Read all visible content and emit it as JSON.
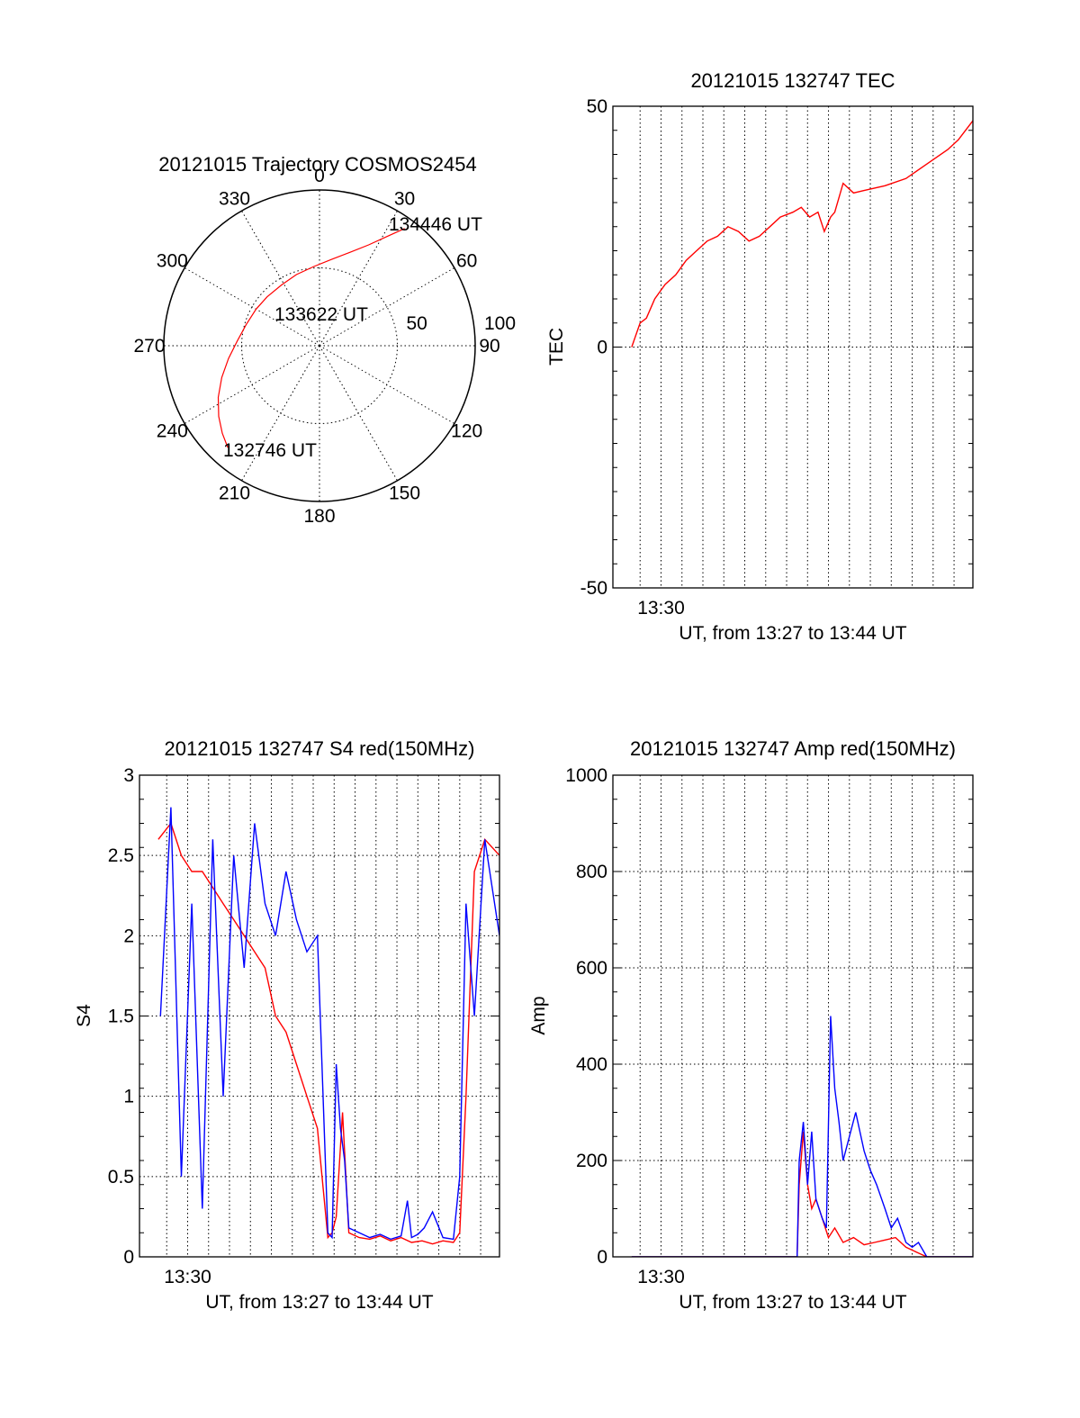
{
  "colors": {
    "red": "#ff0000",
    "blue": "#0000ff",
    "axis": "#000000",
    "background": "#ffffff"
  },
  "chart_data": [
    {
      "id": "trajectory",
      "type": "polar",
      "title": "20121015 Trajectory COSMOS2454",
      "azimuth_labels": [
        "0",
        "30",
        "60",
        "90",
        "120",
        "150",
        "180",
        "210",
        "240",
        "270",
        "300",
        "330"
      ],
      "radial_labels": [
        "50",
        "100"
      ],
      "rlim": [
        0,
        100
      ],
      "grid": true,
      "series": [
        {
          "color": "#ff0000",
          "points": [
            {
              "az": 222,
              "r": 88
            },
            {
              "az": 228,
              "r": 84
            },
            {
              "az": 235,
              "r": 79
            },
            {
              "az": 243,
              "r": 73
            },
            {
              "az": 252,
              "r": 66
            },
            {
              "az": 262,
              "r": 59
            },
            {
              "az": 273,
              "r": 53
            },
            {
              "az": 286,
              "r": 49
            },
            {
              "az": 300,
              "r": 47
            },
            {
              "az": 313,
              "r": 46
            },
            {
              "az": 328,
              "r": 46
            },
            {
              "az": 342,
              "r": 48
            },
            {
              "az": 356,
              "r": 51
            },
            {
              "az": 8,
              "r": 56
            },
            {
              "az": 18,
              "r": 63
            },
            {
              "az": 26,
              "r": 72
            },
            {
              "az": 32,
              "r": 83
            },
            {
              "az": 36,
              "r": 93
            }
          ]
        }
      ],
      "annotations": [
        "132746 UT",
        "133622 UT",
        "134446 UT"
      ]
    },
    {
      "id": "tec",
      "type": "line",
      "title": "20121015 132747 TEC",
      "xlabel": "UT, from 13:27 to 13:44 UT",
      "ylabel": "TEC",
      "xlim": [
        0,
        17.2
      ],
      "ylim": [
        -50,
        50
      ],
      "ytick_values": [
        50,
        0,
        -50
      ],
      "ytick_labels": [
        "50",
        "0",
        "-50"
      ],
      "xtick_labels": [
        {
          "x": 2.3,
          "label": "13:30"
        }
      ],
      "grid": true,
      "series": [
        {
          "color": "#ff0000",
          "x": [
            0.9,
            1.3,
            1.6,
            2.0,
            2.5,
            3.0,
            3.5,
            4.0,
            4.5,
            5.0,
            5.5,
            6.0,
            6.5,
            7.0,
            7.5,
            8.0,
            8.6,
            9.0,
            9.4,
            9.8,
            10.1,
            10.4,
            10.6,
            11.0,
            11.5,
            12.0,
            13.0,
            14.0,
            15.0,
            16.0,
            16.5,
            17.2
          ],
          "y": [
            0,
            5,
            6,
            10,
            13,
            15,
            18,
            20,
            22,
            23,
            25,
            24,
            22,
            23,
            25,
            27,
            28,
            29,
            27,
            28,
            24,
            27,
            28,
            34,
            32,
            32.5,
            33.5,
            35,
            38,
            41,
            43,
            47
          ]
        }
      ]
    },
    {
      "id": "s4",
      "type": "line",
      "title": "20121015 132747 S4 red(150MHz)",
      "xlabel": "UT, from 13:27 to 13:44 UT",
      "ylabel": "S4",
      "xlim": [
        0,
        17.2
      ],
      "ylim": [
        0,
        3
      ],
      "ytick_values": [
        0,
        0.5,
        1,
        1.5,
        2,
        2.5,
        3
      ],
      "ytick_labels": [
        "0",
        "0.5",
        "1",
        "1.5",
        "2",
        "2.5",
        "3"
      ],
      "xtick_labels": [
        {
          "x": 2.3,
          "label": "13:30"
        }
      ],
      "grid": true,
      "series": [
        {
          "color": "#ff0000",
          "x": [
            0.9,
            1.5,
            2.0,
            2.5,
            3.0,
            3.5,
            4.0,
            4.5,
            5.0,
            5.5,
            6.0,
            6.5,
            7.0,
            7.5,
            8.0,
            8.5,
            9.0,
            9.2,
            9.4,
            9.7,
            10.0,
            10.5,
            11.0,
            11.5,
            12.0,
            12.5,
            13.0,
            13.5,
            14.0,
            14.5,
            15.0,
            15.3,
            15.6,
            16.0,
            16.5,
            17.2
          ],
          "y": [
            2.6,
            2.7,
            2.5,
            2.4,
            2.4,
            2.3,
            2.2,
            2.1,
            2.0,
            1.9,
            1.8,
            1.5,
            1.4,
            1.2,
            1.0,
            0.8,
            0.12,
            0.15,
            0.25,
            0.9,
            0.15,
            0.12,
            0.11,
            0.13,
            0.1,
            0.12,
            0.09,
            0.1,
            0.08,
            0.1,
            0.09,
            0.15,
            1.0,
            2.4,
            2.6,
            2.5
          ]
        },
        {
          "color": "#0000ff",
          "x": [
            1.0,
            1.5,
            2.0,
            2.5,
            3.0,
            3.5,
            4.0,
            4.5,
            5.0,
            5.5,
            6.0,
            6.5,
            7.0,
            7.5,
            8.0,
            8.5,
            9.0,
            9.2,
            9.4,
            9.6,
            9.8,
            10.0,
            10.5,
            11.0,
            11.5,
            12.0,
            12.5,
            12.8,
            13.0,
            13.3,
            13.6,
            14.0,
            14.5,
            15.0,
            15.3,
            15.6,
            16.0,
            16.5,
            17.2
          ],
          "y": [
            1.5,
            2.8,
            0.5,
            2.2,
            0.3,
            2.6,
            1.0,
            2.5,
            1.8,
            2.7,
            2.2,
            2.0,
            2.4,
            2.1,
            1.9,
            2.0,
            0.15,
            0.12,
            1.2,
            0.8,
            0.6,
            0.18,
            0.15,
            0.12,
            0.14,
            0.11,
            0.13,
            0.35,
            0.12,
            0.14,
            0.18,
            0.28,
            0.12,
            0.11,
            0.5,
            2.2,
            1.5,
            2.6,
            2.0
          ]
        }
      ]
    },
    {
      "id": "amp",
      "type": "line",
      "title": "20121015 132747 Amp red(150MHz)",
      "xlabel": "UT, from 13:27 to 13:44 UT",
      "ylabel": "Amp",
      "xlim": [
        0,
        17.2
      ],
      "ylim": [
        0,
        1000
      ],
      "ytick_values": [
        0,
        200,
        400,
        600,
        800,
        1000
      ],
      "ytick_labels": [
        "0",
        "200",
        "400",
        "600",
        "800",
        "1000"
      ],
      "xtick_labels": [
        {
          "x": 2.3,
          "label": "13:30"
        }
      ],
      "grid": true,
      "series": [
        {
          "color": "#ff0000",
          "x": [
            0.9,
            8.8,
            8.9,
            9.1,
            9.3,
            9.5,
            9.7,
            10.0,
            10.3,
            10.6,
            11.0,
            11.5,
            12.0,
            12.5,
            13.0,
            13.5,
            14.0,
            14.5,
            15.0,
            17.2
          ],
          "y": [
            0,
            0,
            150,
            260,
            150,
            100,
            120,
            80,
            40,
            60,
            30,
            40,
            25,
            30,
            35,
            40,
            20,
            10,
            0,
            0
          ]
        },
        {
          "color": "#0000ff",
          "x": [
            0.9,
            8.8,
            8.9,
            9.1,
            9.3,
            9.5,
            9.7,
            10.0,
            10.2,
            10.4,
            10.6,
            10.8,
            11.0,
            11.3,
            11.6,
            12.0,
            12.3,
            12.6,
            13.0,
            13.3,
            13.6,
            14.0,
            14.3,
            14.6,
            15.0,
            17.2
          ],
          "y": [
            0,
            0,
            200,
            280,
            150,
            260,
            120,
            80,
            60,
            500,
            350,
            280,
            200,
            250,
            300,
            220,
            180,
            150,
            100,
            60,
            80,
            30,
            20,
            30,
            0,
            0
          ]
        }
      ]
    }
  ]
}
